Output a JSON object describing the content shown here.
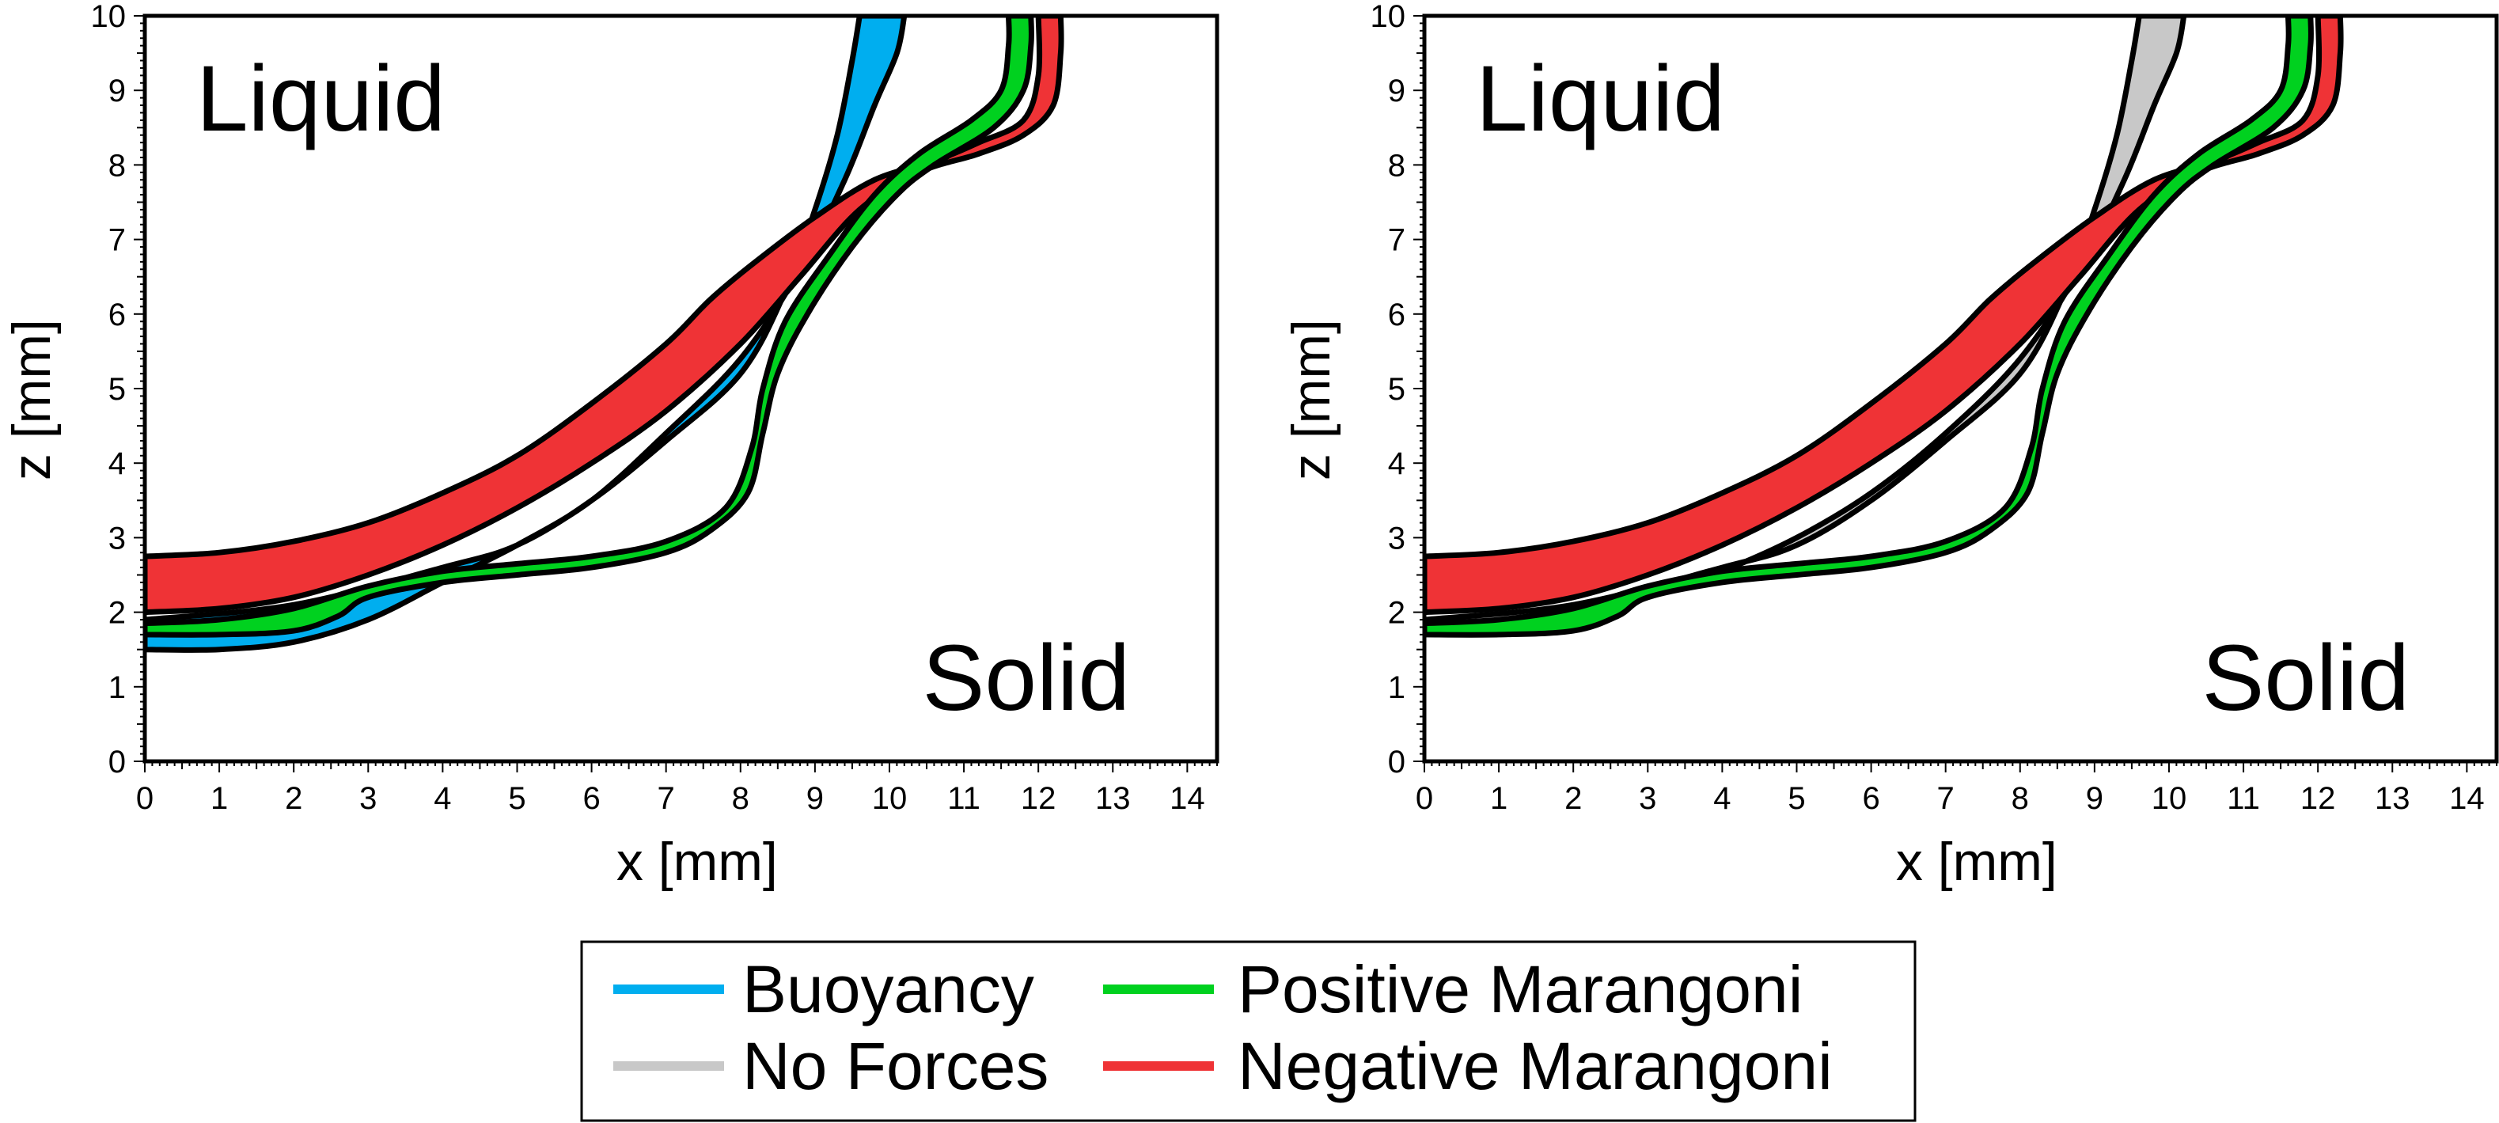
{
  "chart_data": [
    {
      "type": "area",
      "panel": "left",
      "xlabel": "x [mm]",
      "ylabel": "z [mm]",
      "xlim": [
        0,
        14.4
      ],
      "ylim": [
        0,
        10
      ],
      "xticks": [
        "0",
        "1",
        "2",
        "3",
        "4",
        "5",
        "6",
        "7",
        "8",
        "9",
        "10",
        "11",
        "12",
        "13",
        "14"
      ],
      "yticks": [
        "0",
        "1",
        "2",
        "3",
        "4",
        "5",
        "6",
        "7",
        "8",
        "9",
        "10"
      ],
      "grid": false,
      "annotations": [
        {
          "key": "liquid",
          "text": "Liquid"
        },
        {
          "key": "solid",
          "text": "Solid"
        }
      ],
      "series": [
        {
          "name": "Buoyancy",
          "color": "#00aeef",
          "upper": [
            [
              0,
              1.9
            ],
            [
              2,
              2.1
            ],
            [
              4,
              2.6
            ],
            [
              5,
              2.9
            ],
            [
              6,
              3.5
            ],
            [
              7,
              4.3
            ],
            [
              8,
              5.2
            ],
            [
              8.6,
              6.3
            ],
            [
              9.0,
              7.4
            ],
            [
              9.3,
              8.4
            ],
            [
              9.5,
              9.4
            ],
            [
              9.6,
              10
            ]
          ],
          "lower": [
            [
              0,
              1.5
            ],
            [
              1,
              1.5
            ],
            [
              2,
              1.6
            ],
            [
              3,
              1.9
            ],
            [
              4,
              2.4
            ],
            [
              5,
              2.9
            ],
            [
              6,
              3.5
            ],
            [
              7,
              4.4
            ],
            [
              8,
              5.4
            ],
            [
              8.8,
              6.6
            ],
            [
              9.4,
              7.8
            ],
            [
              9.8,
              8.8
            ],
            [
              10.1,
              9.5
            ],
            [
              10.2,
              10
            ]
          ]
        },
        {
          "name": "Negative Marangoni",
          "color": "#ef3336",
          "upper": [
            [
              0,
              2.75
            ],
            [
              1,
              2.8
            ],
            [
              2,
              2.95
            ],
            [
              3,
              3.2
            ],
            [
              4,
              3.6
            ],
            [
              5,
              4.1
            ],
            [
              6,
              4.8
            ],
            [
              7,
              5.6
            ],
            [
              7.6,
              6.2
            ],
            [
              8.2,
              6.7
            ],
            [
              9,
              7.3
            ],
            [
              9.8,
              7.8
            ],
            [
              10.6,
              8.05
            ],
            [
              11.2,
              8.3
            ],
            [
              11.8,
              8.6
            ],
            [
              12.0,
              9.2
            ],
            [
              12.0,
              10
            ]
          ],
          "lower": [
            [
              0,
              2.0
            ],
            [
              1,
              2.05
            ],
            [
              2,
              2.2
            ],
            [
              3,
              2.5
            ],
            [
              4,
              2.9
            ],
            [
              5,
              3.4
            ],
            [
              6,
              4.0
            ],
            [
              7,
              4.7
            ],
            [
              8,
              5.6
            ],
            [
              8.8,
              6.5
            ],
            [
              9.6,
              7.4
            ],
            [
              10.4,
              7.9
            ],
            [
              11.2,
              8.15
            ],
            [
              11.8,
              8.4
            ],
            [
              12.2,
              8.8
            ],
            [
              12.3,
              9.5
            ],
            [
              12.3,
              10
            ]
          ]
        },
        {
          "name": "Positive Marangoni",
          "color": "#00d11f",
          "upper": [
            [
              0,
              1.85
            ],
            [
              1,
              1.9
            ],
            [
              2,
              2.05
            ],
            [
              3,
              2.35
            ],
            [
              4,
              2.55
            ],
            [
              5,
              2.65
            ],
            [
              6,
              2.75
            ],
            [
              7,
              2.95
            ],
            [
              7.8,
              3.4
            ],
            [
              8.15,
              4.2
            ],
            [
              8.3,
              5.0
            ],
            [
              8.6,
              5.9
            ],
            [
              9.2,
              6.8
            ],
            [
              9.8,
              7.6
            ],
            [
              10.4,
              8.15
            ],
            [
              11.1,
              8.6
            ],
            [
              11.5,
              9.0
            ],
            [
              11.6,
              9.6
            ],
            [
              11.6,
              10
            ]
          ],
          "lower": [
            [
              0,
              1.7
            ],
            [
              1,
              1.7
            ],
            [
              2,
              1.75
            ],
            [
              2.6,
              1.95
            ],
            [
              3,
              2.2
            ],
            [
              4,
              2.4
            ],
            [
              5,
              2.5
            ],
            [
              6,
              2.6
            ],
            [
              7,
              2.8
            ],
            [
              7.6,
              3.1
            ],
            [
              8.1,
              3.6
            ],
            [
              8.3,
              4.4
            ],
            [
              8.5,
              5.2
            ],
            [
              8.9,
              6.0
            ],
            [
              9.5,
              6.9
            ],
            [
              10.1,
              7.6
            ],
            [
              10.6,
              8.0
            ],
            [
              11.4,
              8.5
            ],
            [
              11.8,
              9.0
            ],
            [
              11.9,
              9.6
            ],
            [
              11.9,
              10
            ]
          ]
        }
      ]
    },
    {
      "type": "area",
      "panel": "right",
      "xlabel": "x [mm]",
      "ylabel": "z [mm]",
      "xlim": [
        0,
        14.4
      ],
      "ylim": [
        0,
        10
      ],
      "xticks": [
        "0",
        "1",
        "2",
        "3",
        "4",
        "5",
        "6",
        "7",
        "8",
        "9",
        "10",
        "11",
        "12",
        "13",
        "14"
      ],
      "yticks": [
        "0",
        "1",
        "2",
        "3",
        "4",
        "5",
        "6",
        "7",
        "8",
        "9",
        "10"
      ],
      "grid": false,
      "annotations": [
        {
          "key": "liquid",
          "text": "Liquid"
        },
        {
          "key": "solid",
          "text": "Solid"
        }
      ],
      "series": [
        {
          "name": "No Forces",
          "color": "#c8c8c8",
          "upper": [
            [
              0,
              1.9
            ],
            [
              2,
              2.1
            ],
            [
              4,
              2.6
            ],
            [
              5,
              2.9
            ],
            [
              6,
              3.5
            ],
            [
              7,
              4.3
            ],
            [
              8,
              5.2
            ],
            [
              8.6,
              6.3
            ],
            [
              9.0,
              7.4
            ],
            [
              9.3,
              8.4
            ],
            [
              9.5,
              9.4
            ],
            [
              9.6,
              10
            ]
          ],
          "lower": [
            [
              0,
              1.75
            ],
            [
              1,
              1.8
            ],
            [
              2,
              1.9
            ],
            [
              3,
              2.2
            ],
            [
              4,
              2.55
            ],
            [
              5,
              3.0
            ],
            [
              6,
              3.6
            ],
            [
              7,
              4.4
            ],
            [
              8,
              5.4
            ],
            [
              8.8,
              6.6
            ],
            [
              9.4,
              7.8
            ],
            [
              9.8,
              8.8
            ],
            [
              10.1,
              9.5
            ],
            [
              10.2,
              10
            ]
          ]
        },
        {
          "name": "Negative Marangoni",
          "color": "#ef3336",
          "upper": [
            [
              0,
              2.75
            ],
            [
              1,
              2.8
            ],
            [
              2,
              2.95
            ],
            [
              3,
              3.2
            ],
            [
              4,
              3.6
            ],
            [
              5,
              4.1
            ],
            [
              6,
              4.8
            ],
            [
              7,
              5.6
            ],
            [
              7.6,
              6.2
            ],
            [
              8.2,
              6.7
            ],
            [
              9,
              7.3
            ],
            [
              9.8,
              7.8
            ],
            [
              10.6,
              8.05
            ],
            [
              11.2,
              8.3
            ],
            [
              11.8,
              8.6
            ],
            [
              12.0,
              9.2
            ],
            [
              12.0,
              10
            ]
          ],
          "lower": [
            [
              0,
              2.0
            ],
            [
              1,
              2.05
            ],
            [
              2,
              2.2
            ],
            [
              3,
              2.5
            ],
            [
              4,
              2.9
            ],
            [
              5,
              3.4
            ],
            [
              6,
              4.0
            ],
            [
              7,
              4.7
            ],
            [
              8,
              5.6
            ],
            [
              8.8,
              6.5
            ],
            [
              9.6,
              7.4
            ],
            [
              10.4,
              7.9
            ],
            [
              11.2,
              8.15
            ],
            [
              11.8,
              8.4
            ],
            [
              12.2,
              8.8
            ],
            [
              12.3,
              9.5
            ],
            [
              12.3,
              10
            ]
          ]
        },
        {
          "name": "Positive Marangoni",
          "color": "#00d11f",
          "upper": [
            [
              0,
              1.85
            ],
            [
              1,
              1.9
            ],
            [
              2,
              2.05
            ],
            [
              3,
              2.35
            ],
            [
              4,
              2.55
            ],
            [
              5,
              2.65
            ],
            [
              6,
              2.75
            ],
            [
              7,
              2.95
            ],
            [
              7.8,
              3.4
            ],
            [
              8.15,
              4.2
            ],
            [
              8.3,
              5.0
            ],
            [
              8.6,
              5.9
            ],
            [
              9.2,
              6.8
            ],
            [
              9.8,
              7.6
            ],
            [
              10.4,
              8.15
            ],
            [
              11.1,
              8.6
            ],
            [
              11.5,
              9.0
            ],
            [
              11.6,
              9.6
            ],
            [
              11.6,
              10
            ]
          ],
          "lower": [
            [
              0,
              1.7
            ],
            [
              1,
              1.7
            ],
            [
              2,
              1.75
            ],
            [
              2.6,
              1.95
            ],
            [
              3,
              2.2
            ],
            [
              4,
              2.4
            ],
            [
              5,
              2.5
            ],
            [
              6,
              2.6
            ],
            [
              7,
              2.8
            ],
            [
              7.6,
              3.1
            ],
            [
              8.1,
              3.6
            ],
            [
              8.3,
              4.4
            ],
            [
              8.5,
              5.2
            ],
            [
              8.9,
              6.0
            ],
            [
              9.5,
              6.9
            ],
            [
              10.1,
              7.6
            ],
            [
              10.6,
              8.0
            ],
            [
              11.4,
              8.5
            ],
            [
              11.8,
              9.0
            ],
            [
              11.9,
              9.6
            ],
            [
              11.9,
              10
            ]
          ]
        }
      ]
    }
  ],
  "legend": {
    "placement": "bottom-center",
    "entries": [
      {
        "label": "Buoyancy",
        "color": "#00aeef"
      },
      {
        "label": "Positive Marangoni",
        "color": "#00d11f"
      },
      {
        "label": "No Forces",
        "color": "#c8c8c8"
      },
      {
        "label": "Negative Marangoni",
        "color": "#ef3336"
      }
    ]
  }
}
